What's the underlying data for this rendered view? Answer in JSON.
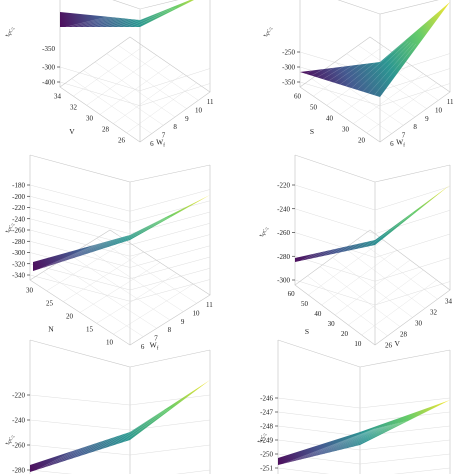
{
  "colors": {
    "ink": "#1a1a1a",
    "box": "#c8c8c8",
    "grid": "#dedede",
    "colormap": [
      "#440154",
      "#3b528b",
      "#21918c",
      "#5ec962",
      "#fde725"
    ]
  },
  "chart_data": [
    {
      "type": "surface",
      "zlabel": "t",
      "zlabel_sub": "PC",
      "zlabel_subsub": "2",
      "xlabel": "W",
      "xlabel_sub": "f",
      "ylabel": "V",
      "zticks": [
        "-300",
        "-400"
      ],
      "zticks_top_partial": "-350",
      "xticks": [
        "6",
        "7",
        "8",
        "9",
        "10",
        "11"
      ],
      "yticks": [
        "26",
        "28",
        "30",
        "32",
        "34"
      ],
      "grid": true
    },
    {
      "type": "surface",
      "zlabel": "t",
      "zlabel_sub": "PC",
      "zlabel_subsub": "2",
      "xlabel": "W",
      "xlabel_sub": "f",
      "ylabel": "S",
      "zticks": [
        "-250",
        "-300",
        "-350"
      ],
      "xticks": [
        "6",
        "7",
        "8",
        "9",
        "10",
        "11"
      ],
      "yticks": [
        "20",
        "30",
        "40",
        "50",
        "60"
      ],
      "grid": true
    },
    {
      "type": "surface",
      "zlabel": "t",
      "zlabel_sub": "PC",
      "zlabel_subsub": "2",
      "xlabel": "W",
      "xlabel_sub": "f",
      "ylabel": "N",
      "zticks": [
        "-180",
        "-200",
        "-220",
        "-240",
        "-260",
        "-280",
        "-300",
        "-320",
        "-340"
      ],
      "xticks": [
        "6",
        "7",
        "8",
        "9",
        "10",
        "11"
      ],
      "yticks": [
        "10",
        "15",
        "20",
        "25",
        "30"
      ],
      "grid": true
    },
    {
      "type": "surface",
      "zlabel": "t",
      "zlabel_sub": "PC",
      "zlabel_subsub": "2",
      "xlabel": "V",
      "ylabel": "S",
      "zticks": [
        "-220",
        "-240",
        "-260",
        "-280",
        "-300"
      ],
      "xticks": [
        "26",
        "28",
        "30",
        "32",
        "34"
      ],
      "yticks": [
        "10",
        "20",
        "30",
        "40",
        "50",
        "60"
      ],
      "grid": true
    },
    {
      "type": "surface",
      "zlabel": "t",
      "zlabel_sub": "PC",
      "zlabel_subsub": "2",
      "zticks": [
        "-220",
        "-240",
        "-260",
        "-280"
      ],
      "grid": true
    },
    {
      "type": "surface",
      "zlabel": "t",
      "zlabel_sub": "PC",
      "zlabel_subsub": "2",
      "zticks": [
        "-246",
        "-247",
        "-248",
        "-249",
        "-250",
        "-251"
      ],
      "grid": true
    }
  ]
}
